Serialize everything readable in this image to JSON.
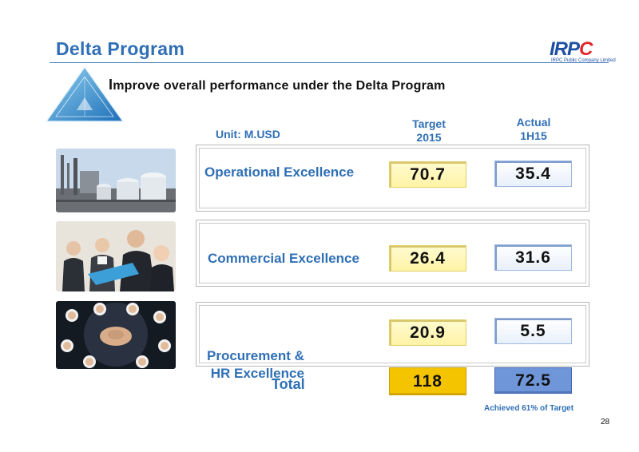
{
  "header": {
    "title": "Delta Program",
    "logo_text_a": "IRP",
    "logo_text_b": "C",
    "logo_sub": "IRPC Public Company Limited"
  },
  "subtitle_first": "I",
  "subtitle_rest": "mprove overall performance under the Delta Program",
  "unit": "Unit: M.USD",
  "columns": {
    "target": [
      "Target",
      "2015"
    ],
    "actual": [
      "Actual",
      "1H15"
    ]
  },
  "rows": [
    {
      "label_lines": [
        "Operational Excellence"
      ],
      "target": "70.7",
      "actual": "35.4"
    },
    {
      "label_lines": [
        "Commercial Excellence"
      ],
      "target": "26.4",
      "actual": "31.6"
    },
    {
      "label_lines": [
        "Procurement &",
        " HR Excellence"
      ],
      "target": "20.9",
      "actual": "5.5"
    }
  ],
  "total": {
    "label": "Total",
    "target": "118",
    "actual": "72.5"
  },
  "note": "Achieved 61% of Target",
  "page_number": "28",
  "colors": {
    "brand_blue": "#2f6fb6",
    "target_total": "#f5c400",
    "actual_total": "#6f96d9"
  }
}
